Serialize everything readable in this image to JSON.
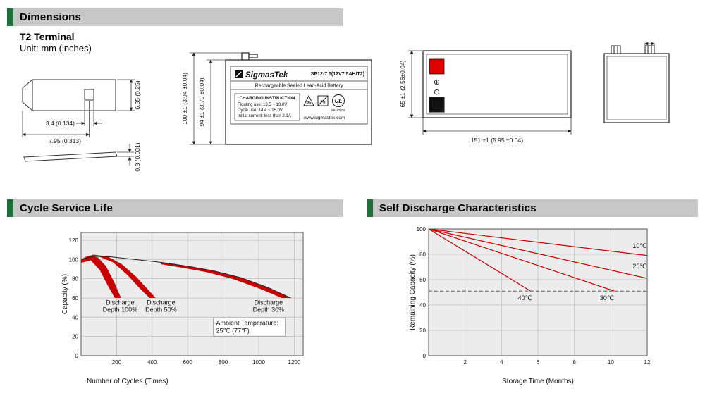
{
  "sections": {
    "dimensions": {
      "title": "Dimensions"
    },
    "cycle_life": {
      "title": "Cycle Service Life"
    },
    "self_discharge": {
      "title": "Self Discharge Characteristics"
    }
  },
  "dimensions": {
    "terminal_type": "T2 Terminal",
    "unit": "Unit: mm (inches)",
    "terminal": {
      "width": "3.4 (0.134)",
      "offset": "7.95 (0.313)",
      "height": "6.35 (0.25)",
      "thickness": "0.8 (0.031)"
    },
    "front_view": {
      "overall_height": "100 ±1 (3.94 ±0.04)",
      "body_height": "94 ±1 (3.70 ±0.04)"
    },
    "top_view": {
      "width": "65 ±1 (2.56±0.04)",
      "length": "151 ±1 (5.95 ±0.04)",
      "positive_symbol": "⊕",
      "negative_symbol": "⊖"
    },
    "label": {
      "brand": "SigmasTek",
      "model": "SP12-7.5(12V7.5AH/T2)",
      "subtitle": "Rechargeable Sealed Lead-Acid Battery",
      "charging_title": "CHARGING INSTRUCTION",
      "charging_line1": "Floating use: 13.5 ~ 13.8V",
      "charging_line2": "Cycle use: 14.4 ~ 15.0V",
      "charging_line3": "Initial current: less than 2.1A",
      "pb1": "Pb",
      "pb2": "Pb",
      "ul_text": "UL",
      "ul_code": "MH47926",
      "website": "www.sigmastek.com"
    }
  },
  "chart_data": [
    {
      "type": "area",
      "title": "Cycle Service Life",
      "xlabel": "Number of Cycles (Times)",
      "ylabel": "Capacity (%)",
      "xlim": [
        0,
        1250
      ],
      "ylim": [
        0,
        128
      ],
      "xticks": [
        200,
        400,
        600,
        800,
        1000,
        1200
      ],
      "yticks": [
        0,
        20,
        40,
        60,
        80,
        100,
        120
      ],
      "grid": true,
      "xlabel_align": "left",
      "line_color": "#c80000",
      "envelope": [
        [
          0,
          100
        ],
        [
          60,
          103
        ],
        [
          150,
          103
        ],
        [
          300,
          100
        ],
        [
          450,
          97
        ],
        [
          600,
          93
        ],
        [
          750,
          88
        ],
        [
          900,
          81
        ],
        [
          1050,
          71
        ],
        [
          1180,
          60
        ]
      ],
      "bands": [
        {
          "name": "Discharge Depth 100%",
          "points": [
            [
              0,
              100
            ],
            [
              45,
              104
            ],
            [
              95,
              102
            ],
            [
              140,
              93
            ],
            [
              185,
              77
            ],
            [
              225,
              60
            ],
            [
              190,
              60
            ],
            [
              150,
              73
            ],
            [
              105,
              89
            ],
            [
              55,
              99
            ],
            [
              10,
              97
            ],
            [
              0,
              96
            ]
          ]
        },
        {
          "name": "Discharge Depth 50%",
          "points": [
            [
              0,
              101
            ],
            [
              70,
              105
            ],
            [
              150,
              103
            ],
            [
              230,
              95
            ],
            [
              310,
              82
            ],
            [
              380,
              68
            ],
            [
              420,
              60
            ],
            [
              385,
              60
            ],
            [
              330,
              70
            ],
            [
              260,
              84
            ],
            [
              180,
              97
            ],
            [
              100,
              103
            ],
            [
              30,
              103
            ],
            [
              0,
              101
            ]
          ]
        },
        {
          "name": "Discharge Depth 30%",
          "points": [
            [
              450,
              97
            ],
            [
              600,
              93
            ],
            [
              750,
              88
            ],
            [
              900,
              81
            ],
            [
              1050,
              71
            ],
            [
              1180,
              60
            ],
            [
              1130,
              60
            ],
            [
              1000,
              70
            ],
            [
              850,
              80
            ],
            [
              700,
              87
            ],
            [
              550,
              92
            ],
            [
              450,
              95
            ]
          ]
        }
      ],
      "band_labels": [
        {
          "lines": [
            "Discharge",
            "Depth 100%"
          ],
          "x": 220,
          "y": 53
        },
        {
          "lines": [
            "Discharge",
            "Depth 50%"
          ],
          "x": 450,
          "y": 53
        },
        {
          "lines": [
            "Discharge",
            "Depth 30%"
          ],
          "x": 1055,
          "y": 53
        }
      ],
      "note": {
        "lines": [
          "Ambient Temperature:",
          "25℃ (77℉)"
        ],
        "x": 760,
        "y": 32
      }
    },
    {
      "type": "line",
      "title": "Self Discharge Characteristics",
      "xlabel": "Storage Time (Months)",
      "ylabel": "Remaining Capacity (%)",
      "xlim": [
        0,
        12
      ],
      "ylim": [
        0,
        100
      ],
      "xticks": [
        2,
        4,
        6,
        8,
        10,
        12
      ],
      "yticks": [
        0,
        20,
        40,
        60,
        80,
        100
      ],
      "grid": true,
      "line_color": "#c80000",
      "series": [
        {
          "name": "10℃",
          "points": [
            [
              0,
              100
            ],
            [
              12,
              79
            ]
          ],
          "label_x": 11.2,
          "label_y": 85
        },
        {
          "name": "25℃",
          "points": [
            [
              0,
              100
            ],
            [
              12,
              61
            ]
          ],
          "label_x": 11.2,
          "label_y": 69
        },
        {
          "name": "30℃",
          "points": [
            [
              0,
              100
            ],
            [
              10.2,
              51
            ]
          ],
          "label_x": 9.4,
          "label_y": 44
        },
        {
          "name": "40℃",
          "points": [
            [
              0,
              100
            ],
            [
              5.6,
              51
            ]
          ],
          "label_x": 4.9,
          "label_y": 44
        }
      ],
      "dashed_y": 51
    }
  ]
}
